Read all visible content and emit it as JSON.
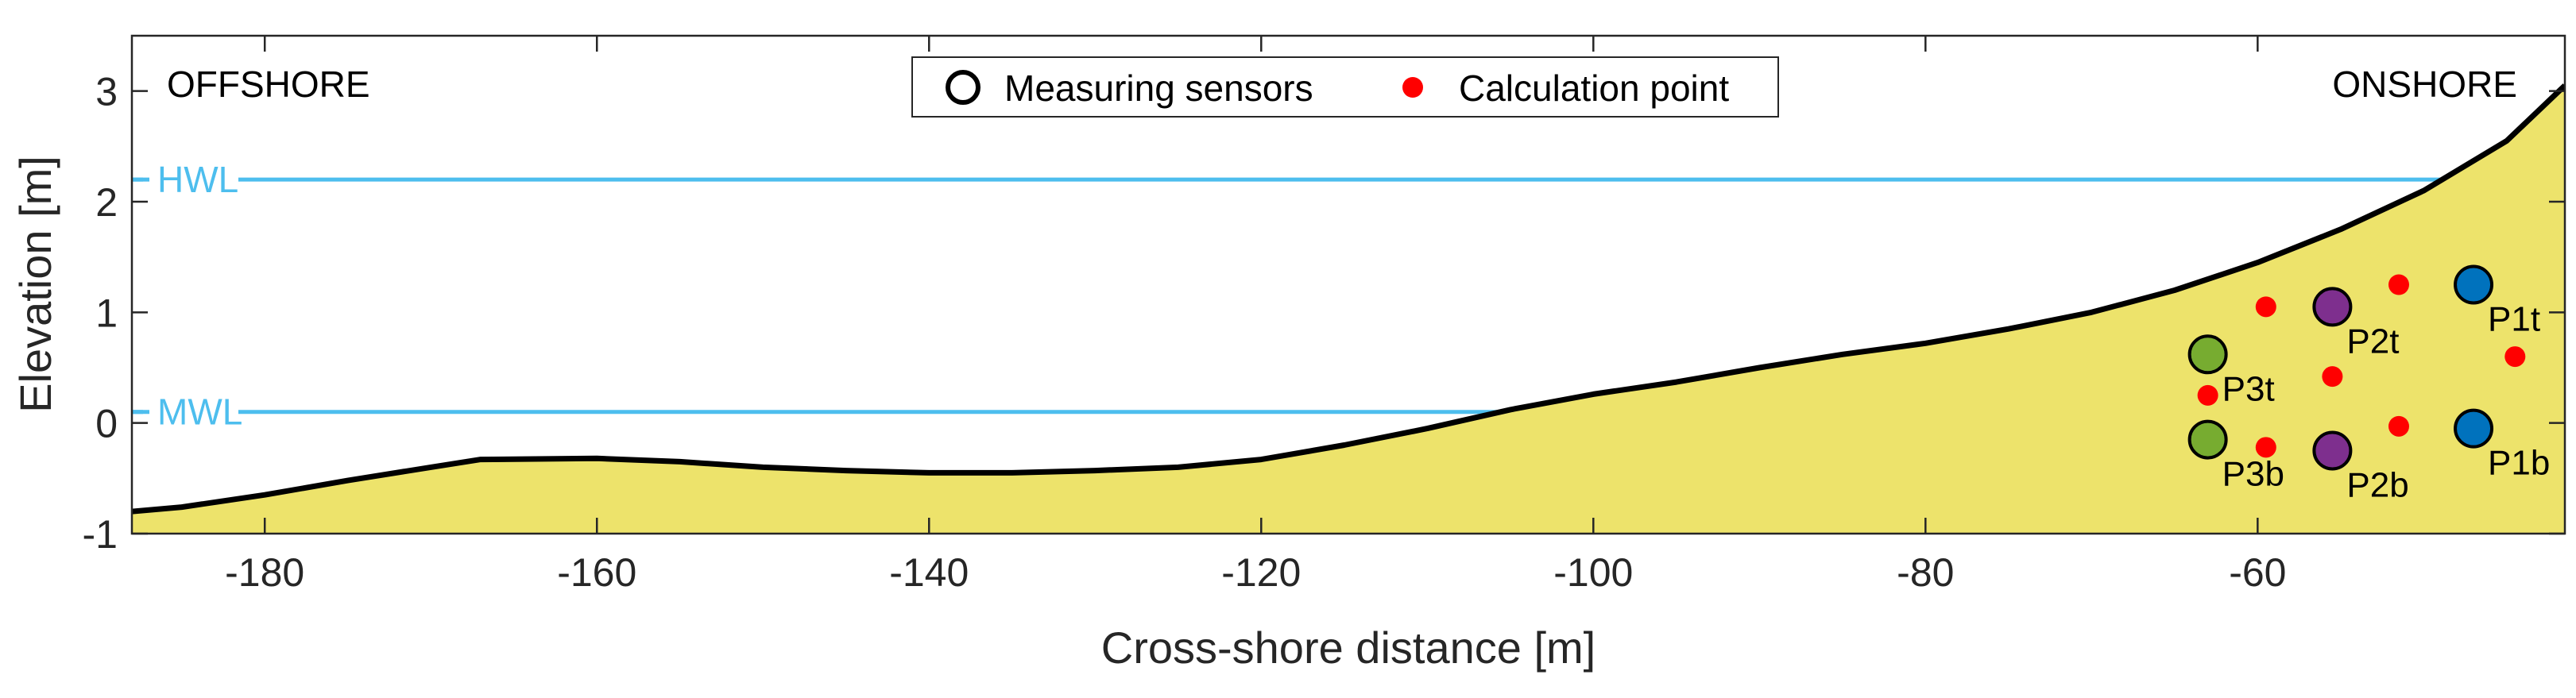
{
  "chart_data": {
    "type": "area",
    "xlabel": "Cross-shore distance [m]",
    "ylabel": "Elevation [m]",
    "xlim": [
      -188,
      -41.5
    ],
    "ylim": [
      -1,
      3.5
    ],
    "xticks": [
      -180,
      -160,
      -140,
      -120,
      -100,
      -80,
      -60
    ],
    "yticks": [
      -1,
      0,
      1,
      2,
      3
    ],
    "corner_labels": {
      "left": "OFFSHORE",
      "right": "ONSHORE"
    },
    "levels": [
      {
        "name": "HWL",
        "y": 2.2,
        "color": "#4DBEEE"
      },
      {
        "name": "MWL",
        "y": 0.1,
        "color": "#4DBEEE"
      }
    ],
    "profile": {
      "fill_color": "#EDE36B",
      "line_color": "#000000",
      "x": [
        -188,
        -185,
        -180,
        -175,
        -170,
        -167,
        -160,
        -155,
        -150,
        -145,
        -140,
        -135,
        -130,
        -125,
        -120,
        -115,
        -110,
        -105,
        -100,
        -95,
        -90,
        -85,
        -80,
        -75,
        -70,
        -65,
        -60,
        -55,
        -50,
        -45,
        -41.5
      ],
      "y": [
        -0.8,
        -0.76,
        -0.65,
        -0.52,
        -0.4,
        -0.33,
        -0.32,
        -0.35,
        -0.4,
        -0.43,
        -0.45,
        -0.45,
        -0.43,
        -0.4,
        -0.33,
        -0.2,
        -0.05,
        0.12,
        0.26,
        0.37,
        0.5,
        0.62,
        0.72,
        0.85,
        1.0,
        1.2,
        1.45,
        1.75,
        2.1,
        2.55,
        3.05
      ]
    },
    "legend": {
      "position": "top-center",
      "entries": [
        {
          "label": "Measuring sensors",
          "marker": "open-circle"
        },
        {
          "label": "Calculation point",
          "marker": "red-dot"
        }
      ]
    },
    "sensors": [
      {
        "name": "P1t",
        "x": -47,
        "y": 1.25,
        "color": "#0072BD"
      },
      {
        "name": "P1b",
        "x": -47,
        "y": -0.05,
        "color": "#0072BD"
      },
      {
        "name": "P2t",
        "x": -55.5,
        "y": 1.05,
        "color": "#7E2F8E"
      },
      {
        "name": "P2b",
        "x": -55.5,
        "y": -0.25,
        "color": "#7E2F8E"
      },
      {
        "name": "P3t",
        "x": -63,
        "y": 0.62,
        "color": "#77AC30"
      },
      {
        "name": "P3b",
        "x": -63,
        "y": -0.15,
        "color": "#77AC30"
      }
    ],
    "calculation_points": [
      {
        "x": -59.5,
        "y": 1.05
      },
      {
        "x": -51.5,
        "y": 1.25
      },
      {
        "x": -44.5,
        "y": 0.6
      },
      {
        "x": -55.5,
        "y": 0.42
      },
      {
        "x": -63,
        "y": 0.25
      },
      {
        "x": -59.5,
        "y": -0.22
      },
      {
        "x": -51.5,
        "y": -0.03
      }
    ],
    "calc_color": "#FF0000"
  }
}
